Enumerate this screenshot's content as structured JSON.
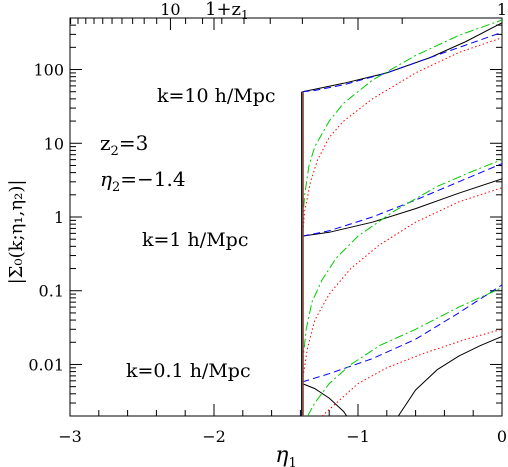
{
  "chart_data": {
    "type": "line",
    "xlabel": "η",
    "xlabel_sub": "1",
    "ylabel": "|Σ₀(k;η₁,η₂)|",
    "top_axis_label": "1+z",
    "top_axis_label_sub": "1",
    "top_tick_labels": [
      "10",
      "1"
    ],
    "top_tick_redshift": [
      9,
      0
    ],
    "xlim": [
      -3,
      0
    ],
    "ylim": [
      0.002,
      500
    ],
    "yscale": "log",
    "x_ticks": [
      -3,
      -2,
      -1,
      0
    ],
    "x_tick_labels": [
      "−3",
      "−2",
      "−1",
      "0"
    ],
    "y_ticks": [
      0.01,
      0.1,
      1,
      10,
      100
    ],
    "y_tick_labels": [
      "0.01",
      "0.1",
      "1",
      "10",
      "100"
    ],
    "eta1_min": -1.386,
    "annotations": {
      "z2": "z",
      "z2_sub": "2",
      "z2_val": "=3",
      "eta2": "η",
      "eta2_sub": "2",
      "eta2_val": "=−1.4"
    },
    "groups": [
      {
        "label": "k=10 h/Mpc",
        "series": [
          {
            "color": "#000000",
            "dash": "solid",
            "x": [
              -1.386,
              -1.3,
              -1.1,
              -0.8,
              -0.5,
              -0.25,
              0
            ],
            "y": [
              50,
              54,
              65,
              90,
              145,
              240,
              430
            ]
          },
          {
            "color": "#0000ff",
            "dash": "dashed",
            "x": [
              -1.386,
              -1.3,
              -1.1,
              -0.8,
              -0.5,
              -0.25,
              0
            ],
            "y": [
              50,
              52,
              62,
              90,
              145,
              215,
              320
            ]
          },
          {
            "color": "#00cc00",
            "dash": "dashdot",
            "x": [
              -1.386,
              -1.37,
              -1.34,
              -1.3,
              -1.2,
              -1.1,
              -0.9,
              -0.6,
              -0.3,
              0
            ],
            "y": [
              0.8,
              2,
              5,
              9,
              20,
              35,
              72,
              155,
              290,
              470
            ]
          },
          {
            "color": "#ff0000",
            "dash": "dotted",
            "x": [
              -1.386,
              -1.37,
              -1.33,
              -1.28,
              -1.2,
              -1.1,
              -0.9,
              -0.6,
              -0.3,
              0
            ],
            "y": [
              0.5,
              1.2,
              3,
              6,
              12,
              20,
              40,
              90,
              170,
              270
            ]
          }
        ]
      },
      {
        "label": "k=1 h/Mpc",
        "series": [
          {
            "color": "#000000",
            "dash": "solid",
            "x": [
              -1.386,
              -1.2,
              -0.9,
              -0.6,
              -0.3,
              0
            ],
            "y": [
              0.55,
              0.62,
              0.85,
              1.3,
              2.1,
              3.3
            ]
          },
          {
            "color": "#0000ff",
            "dash": "dashed",
            "x": [
              -1.386,
              -1.2,
              -0.9,
              -0.6,
              -0.3,
              0
            ],
            "y": [
              0.55,
              0.65,
              1.0,
              1.7,
              3.0,
              5.3
            ]
          },
          {
            "color": "#00cc00",
            "dash": "dashdot",
            "x": [
              -1.386,
              -1.36,
              -1.32,
              -1.25,
              -1.15,
              -1.0,
              -0.75,
              -0.45,
              -0.2,
              0
            ],
            "y": [
              0.01,
              0.03,
              0.07,
              0.14,
              0.28,
              0.55,
              1.2,
              2.6,
              4.2,
              6.0
            ]
          },
          {
            "color": "#ff0000",
            "dash": "dotted",
            "x": [
              -1.386,
              -1.35,
              -1.3,
              -1.2,
              -1.05,
              -0.85,
              -0.6,
              -0.3,
              0
            ],
            "y": [
              0.006,
              0.017,
              0.04,
              0.09,
              0.2,
              0.42,
              0.85,
              1.6,
              2.5
            ]
          }
        ]
      },
      {
        "label": "k=0.1 h/Mpc",
        "series": [
          {
            "color": "#000000",
            "dash": "solid",
            "x": [
              -1.386,
              -1.3,
              -1.2,
              -1.1,
              -1.0,
              -0.93
            ],
            "y": [
              0.0055,
              0.0047,
              0.0035,
              0.0023,
              0.0012,
              0.002
            ]
          },
          {
            "color": "#000000",
            "dash": "solid",
            "x": [
              -0.72,
              -0.6,
              -0.45,
              -0.3,
              -0.15,
              0
            ],
            "y": [
              0.002,
              0.0045,
              0.0085,
              0.013,
              0.018,
              0.024
            ]
          },
          {
            "color": "#0000ff",
            "dash": "dashed",
            "x": [
              -1.386,
              -1.2,
              -0.9,
              -0.6,
              -0.3,
              0
            ],
            "y": [
              0.0058,
              0.0075,
              0.012,
              0.022,
              0.05,
              0.12
            ]
          },
          {
            "color": "#00cc00",
            "dash": "dashdot",
            "x": [
              -1.35,
              -1.3,
              -1.2,
              -1.05,
              -0.85,
              -0.6,
              -0.3,
              0
            ],
            "y": [
              0.002,
              0.003,
              0.0055,
              0.01,
              0.018,
              0.03,
              0.06,
              0.11
            ]
          },
          {
            "color": "#ff0000",
            "dash": "dotted",
            "x": [
              -1.25,
              -1.15,
              -1.0,
              -0.8,
              -0.55,
              -0.25,
              0
            ],
            "y": [
              0.002,
              0.003,
              0.0055,
              0.009,
              0.014,
              0.022,
              0.03
            ]
          }
        ]
      }
    ]
  }
}
